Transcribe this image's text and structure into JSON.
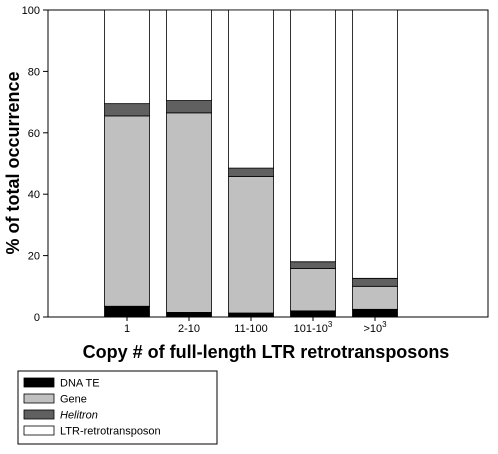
{
  "chart_data": {
    "type": "bar",
    "stacked": true,
    "xlabel": "Copy # of full-length LTR retrotransposons",
    "ylabel": "% of total occurrence",
    "ylim": [
      0,
      100
    ],
    "yticks": [
      "0",
      "20",
      "40",
      "60",
      "80",
      "100"
    ],
    "categories": [
      {
        "label": "1",
        "base": "1",
        "sup": ""
      },
      {
        "label": "2-10",
        "base": "2-10",
        "sup": ""
      },
      {
        "label": "11-100",
        "base": "11-100",
        "sup": ""
      },
      {
        "label": "101-10^3",
        "base": "101-10",
        "sup": "3"
      },
      {
        "label": ">10^3",
        "base": ">10",
        "sup": "3"
      }
    ],
    "series": [
      {
        "name": "DNA TE",
        "color": "#000000",
        "italic": false,
        "values": [
          3.5,
          1.5,
          1.3,
          2.0,
          2.5
        ]
      },
      {
        "name": "Gene",
        "color": "#c0c0c0",
        "italic": false,
        "values": [
          62.0,
          65.0,
          44.5,
          13.8,
          7.5
        ]
      },
      {
        "name": "Helitron",
        "color": "#606060",
        "italic": true,
        "values": [
          4.0,
          4.0,
          2.7,
          2.2,
          2.6
        ]
      },
      {
        "name": "LTR-retrotransposon",
        "color": "#ffffff",
        "italic": false,
        "values": [
          30.5,
          29.5,
          51.5,
          82.0,
          87.4
        ]
      }
    ],
    "legend_position": "bottom-left",
    "grid": false
  }
}
